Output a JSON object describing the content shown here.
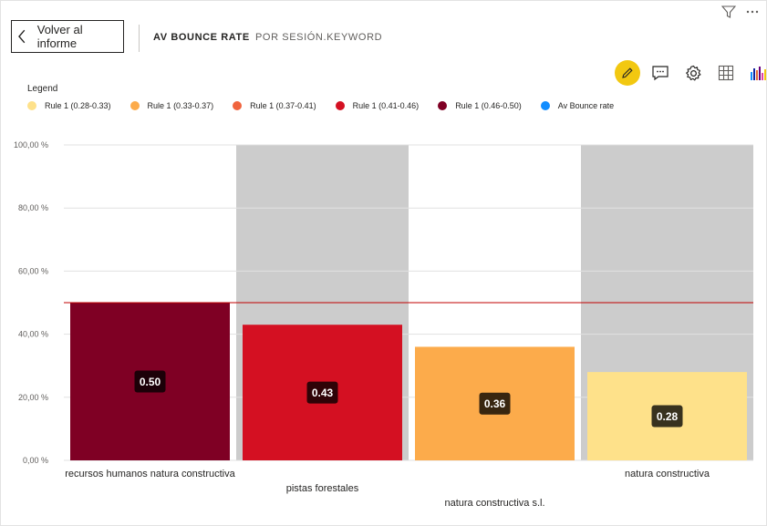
{
  "header": {
    "back_label": "Volver al informe",
    "breadcrumb": [
      "AV BOUNCE RATE",
      "POR SESIÓN.KEYWORD"
    ]
  },
  "toolbar": {
    "icons": [
      "edit-icon",
      "comment-icon",
      "settings-icon",
      "table-icon",
      "chart-type-icon"
    ]
  },
  "legend": {
    "title": "Legend",
    "items": [
      {
        "label": "Rule 1 (0.28-0.33)",
        "color": "#FEE18A"
      },
      {
        "label": "Rule 1 (0.33-0.37)",
        "color": "#FCAB4B"
      },
      {
        "label": "Rule 1 (0.37-0.41)",
        "color": "#F0643E"
      },
      {
        "label": "Rule 1 (0.41-0.46)",
        "color": "#D41022"
      },
      {
        "label": "Rule 1 (0.46-0.50)",
        "color": "#7F0024"
      },
      {
        "label": "Av Bounce rate",
        "color": "#118DFF"
      }
    ]
  },
  "chart_data": {
    "type": "bar",
    "categories": [
      "recursos humanos natura constructiva",
      "pistas forestales",
      "natura constructiva s.l.",
      "natura constructiva"
    ],
    "values": [
      0.5,
      0.43,
      0.36,
      0.28
    ],
    "data_labels": [
      "0.50",
      "0.43",
      "0.36",
      "0.28"
    ],
    "bar_colors": [
      "#7F0024",
      "#D41022",
      "#FCAB4B",
      "#FEE18A"
    ],
    "ylim": [
      0,
      1
    ],
    "yticks": [
      0,
      0.2,
      0.4,
      0.6,
      0.8,
      1.0
    ],
    "ytick_labels": [
      "0,00 %",
      "20,00 %",
      "40,00 %",
      "60,00 %",
      "80,00 %",
      "100,00 %"
    ],
    "reference_line": {
      "value": 0.5,
      "color": "#C00000"
    },
    "band_color": "#CCCCCC",
    "grid": true
  }
}
